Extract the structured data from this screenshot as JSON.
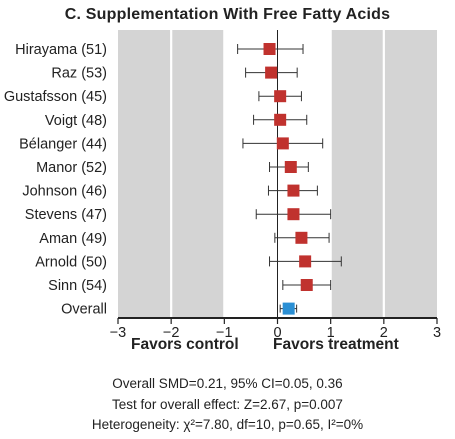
{
  "chart_data": {
    "type": "forest",
    "title": "C. Supplementation With Free Fatty Acids",
    "xlim": [
      -3,
      3
    ],
    "xticks": [
      -3,
      -2,
      -1,
      0,
      1,
      2,
      3
    ],
    "xtick_labels": [
      "−3",
      "−2",
      "−1",
      "0",
      "1",
      "2",
      "3"
    ],
    "studies": [
      {
        "label": "Hirayama (51)",
        "estimate": -0.15,
        "ci": [
          -0.75,
          0.48
        ]
      },
      {
        "label": "Raz (53)",
        "estimate": -0.12,
        "ci": [
          -0.6,
          0.37
        ]
      },
      {
        "label": "Gustafsson (45)",
        "estimate": 0.05,
        "ci": [
          -0.35,
          0.45
        ]
      },
      {
        "label": "Voigt (48)",
        "estimate": 0.05,
        "ci": [
          -0.45,
          0.55
        ]
      },
      {
        "label": "Bélanger (44)",
        "estimate": 0.1,
        "ci": [
          -0.65,
          0.85
        ]
      },
      {
        "label": "Manor (52)",
        "estimate": 0.25,
        "ci": [
          -0.15,
          0.58
        ]
      },
      {
        "label": "Johnson (46)",
        "estimate": 0.3,
        "ci": [
          -0.17,
          0.75
        ]
      },
      {
        "label": "Stevens (47)",
        "estimate": 0.3,
        "ci": [
          -0.4,
          1.0
        ]
      },
      {
        "label": "Aman (49)",
        "estimate": 0.45,
        "ci": [
          -0.05,
          0.97
        ]
      },
      {
        "label": "Arnold (50)",
        "estimate": 0.52,
        "ci": [
          -0.15,
          1.2
        ]
      },
      {
        "label": "Sinn (54)",
        "estimate": 0.55,
        "ci": [
          0.1,
          1.0
        ]
      }
    ],
    "overall": {
      "label": "Overall",
      "estimate": 0.21,
      "ci": [
        0.05,
        0.36
      ]
    },
    "favors_left": "Favors control",
    "favors_right": "Favors treatment",
    "stats": [
      "Overall SMD=0.21, 95% CI=0.05, 0.36",
      "Test for overall effect: Z=2.67, p=0.007",
      "Heterogeneity: χ²=7.80, df=10, p=0.65, I²=0%"
    ],
    "grid": true,
    "colors": {
      "study_marker": "#c0322e",
      "overall_marker": "#2a8fd4",
      "grid_band": "#d4d4d4",
      "background": "#ffffff",
      "frame": "#222222"
    }
  }
}
